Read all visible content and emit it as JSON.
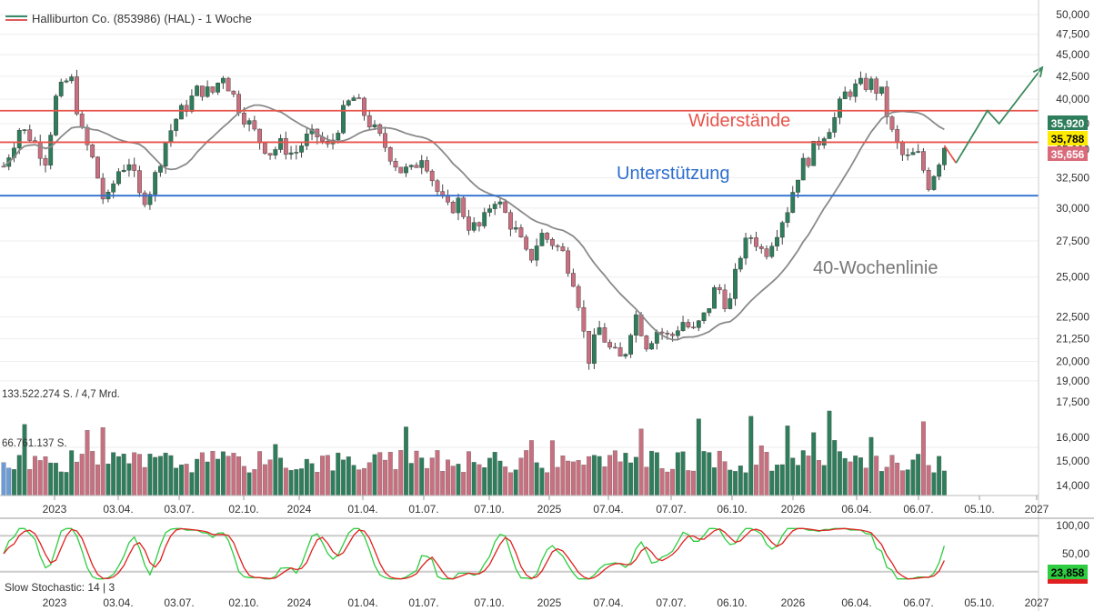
{
  "header": {
    "title": "Halliburton Co. (853986) (HAL) - 1 Woche",
    "legend_color": "#3a8a6a",
    "legend_color2": "#e05a5a"
  },
  "price_panel": {
    "y_ticks": [
      50000,
      47500,
      45000,
      42500,
      40000,
      37500,
      35000,
      32500,
      30000,
      27500,
      25000,
      22500,
      21250,
      20000,
      19000
    ],
    "y_tick_labels": [
      "50,000",
      "47,500",
      "45,000",
      "42,500",
      "40,000",
      "37,500",
      "35,000",
      "32,500",
      "30,000",
      "27,500",
      "25,000",
      "22,500",
      "21,250",
      "20,000",
      "19,000"
    ],
    "price_tags": [
      {
        "label": "35,920",
        "bg": "#2e7d5b",
        "fg": "#ffffff"
      },
      {
        "label": "35,788",
        "bg": "#ffeb00",
        "fg": "#000000"
      },
      {
        "label": "35,656",
        "bg": "#d86a7a",
        "fg": "#ffffff"
      }
    ],
    "annotations": {
      "resistance": "Widerstände",
      "support": "Unterstützung",
      "ma40": "40-Wochenlinie"
    }
  },
  "volume_panel": {
    "max_label": "133.522.274 S. / 4,7 Mrd.",
    "mid_label": "66.761.137 S.",
    "y_tick_labels": [
      "17,500",
      "16,000",
      "15,000",
      "14,000"
    ]
  },
  "stoch_panel": {
    "label": "Slow Stochastic: 14 | 3",
    "y_tick_labels": [
      "100,00",
      "50,00"
    ],
    "value_tag": "23,858"
  },
  "x_axis": {
    "labels": [
      "2023",
      "03.04.",
      "03.07.",
      "02.10.",
      "2024",
      "01.04.",
      "01.07.",
      "07.10.",
      "2025",
      "07.04.",
      "07.07.",
      "06.10.",
      "2026",
      "06.04.",
      "06.07.",
      "05.10.",
      "2027"
    ]
  },
  "colors": {
    "up": "#2e7d5b",
    "down": "#c97080",
    "resistance": "#e8544c",
    "support": "#2f6fcf",
    "ma": "#8a8a8a",
    "arrow": "#3b8a5e",
    "stoch_k": "#2ecc40",
    "stoch_d": "#e02020"
  },
  "chart_data": {
    "type": "candlestick",
    "title": "Halliburton Co. (853986) (HAL) - 1 Woche",
    "ylim": [
      18500,
      51000
    ],
    "horizontal_lines": [
      {
        "name": "Widerstände",
        "value": 38800
      },
      {
        "name": "Widerstände",
        "value": 35700
      },
      {
        "name": "Unterstützung",
        "value": 31000
      }
    ],
    "price_path": [
      [
        0,
        33500
      ],
      [
        8,
        37000
      ],
      [
        14,
        36200
      ],
      [
        22,
        34000
      ],
      [
        26,
        39800
      ],
      [
        34,
        42600
      ],
      [
        40,
        36500
      ],
      [
        46,
        33800
      ],
      [
        52,
        30000
      ],
      [
        58,
        33000
      ],
      [
        64,
        34000
      ],
      [
        70,
        30500
      ],
      [
        76,
        31800
      ],
      [
        82,
        35500
      ],
      [
        88,
        38000
      ],
      [
        94,
        39500
      ],
      [
        100,
        41200
      ],
      [
        106,
        40500
      ],
      [
        112,
        42800
      ],
      [
        118,
        40000
      ],
      [
        124,
        37800
      ],
      [
        130,
        36000
      ],
      [
        136,
        34800
      ],
      [
        142,
        35500
      ],
      [
        148,
        34500
      ],
      [
        154,
        36000
      ],
      [
        160,
        36300
      ],
      [
        166,
        35000
      ],
      [
        172,
        38000
      ],
      [
        178,
        40300
      ],
      [
        184,
        38500
      ],
      [
        190,
        36500
      ],
      [
        196,
        35000
      ],
      [
        202,
        33200
      ],
      [
        208,
        33000
      ],
      [
        214,
        34800
      ],
      [
        220,
        31800
      ],
      [
        226,
        29800
      ],
      [
        232,
        30500
      ],
      [
        238,
        28500
      ],
      [
        244,
        28500
      ],
      [
        250,
        31000
      ],
      [
        256,
        29500
      ],
      [
        262,
        28000
      ],
      [
        268,
        26000
      ],
      [
        274,
        28000
      ],
      [
        280,
        27400
      ],
      [
        286,
        26500
      ],
      [
        292,
        24500
      ],
      [
        298,
        20000
      ],
      [
        304,
        21800
      ],
      [
        310,
        20500
      ],
      [
        316,
        20000
      ],
      [
        322,
        22800
      ],
      [
        328,
        21000
      ],
      [
        334,
        21800
      ],
      [
        340,
        21200
      ],
      [
        346,
        22300
      ],
      [
        352,
        21600
      ],
      [
        358,
        22600
      ],
      [
        364,
        24500
      ],
      [
        370,
        23000
      ],
      [
        376,
        26600
      ],
      [
        382,
        28000
      ],
      [
        388,
        26500
      ],
      [
        394,
        28200
      ],
      [
        400,
        30000
      ],
      [
        406,
        33200
      ],
      [
        412,
        34600
      ],
      [
        418,
        36500
      ],
      [
        424,
        38000
      ],
      [
        430,
        40800
      ],
      [
        436,
        41300
      ],
      [
        442,
        41800
      ],
      [
        448,
        40500
      ],
      [
        454,
        36000
      ],
      [
        460,
        34000
      ],
      [
        466,
        34700
      ],
      [
        472,
        32000
      ],
      [
        476,
        33500
      ],
      [
        480,
        35400
      ]
    ],
    "ma40": "40-Wochenlinie",
    "stochastic": {
      "name": "Slow Stochastic: 14 | 3",
      "last": 23.858,
      "ylim": [
        0,
        100
      ]
    },
    "x_ticks": [
      "2023",
      "03.04.",
      "03.07.",
      "02.10.",
      "2024",
      "01.04.",
      "01.07.",
      "07.10.",
      "2025",
      "07.04.",
      "07.07.",
      "06.10.",
      "2026",
      "06.04.",
      "06.07.",
      "05.10.",
      "2027"
    ],
    "projection": [
      [
        480,
        35400
      ],
      [
        486,
        33800
      ],
      [
        502,
        38800
      ],
      [
        508,
        37500
      ],
      [
        530,
        43500
      ]
    ]
  }
}
